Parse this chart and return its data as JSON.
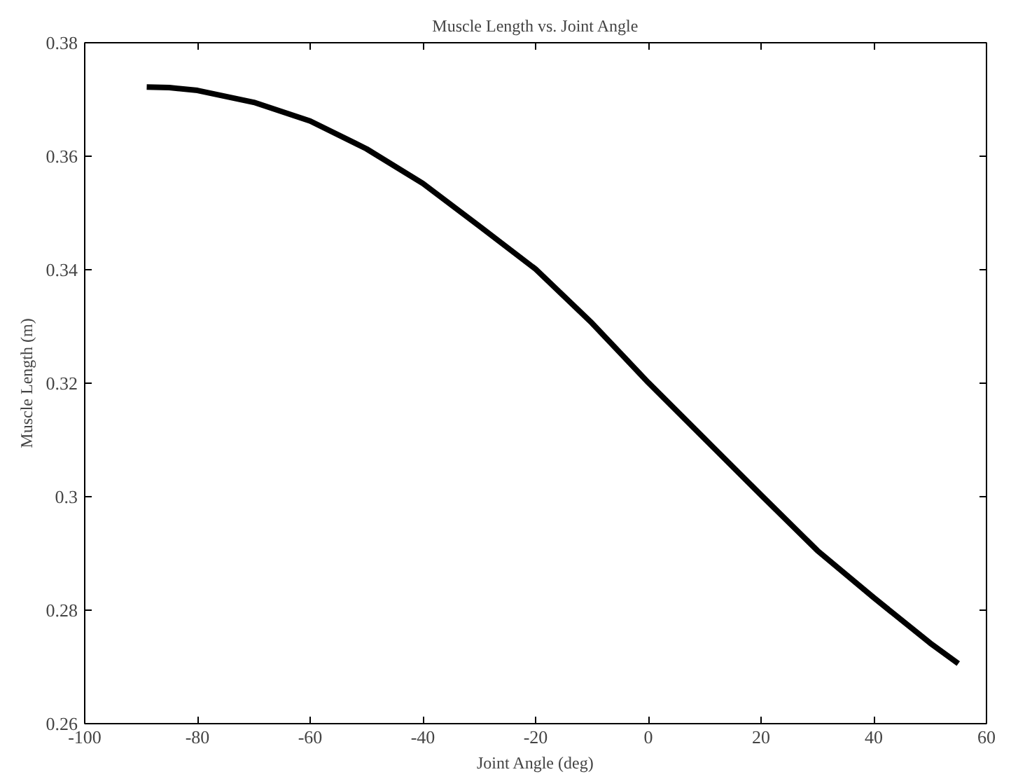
{
  "chart_data": {
    "type": "line",
    "title": "Muscle Length vs. Joint Angle",
    "xlabel": "Joint Angle (deg)",
    "ylabel": "Muscle Length (m)",
    "x": [
      -89,
      -85,
      -80,
      -70,
      -60,
      -50,
      -40,
      -30,
      -20,
      -10,
      0,
      10,
      20,
      30,
      40,
      50,
      55
    ],
    "series": [
      {
        "color": "#000000",
        "values": [
          0.3722,
          0.3721,
          0.3716,
          0.3695,
          0.3662,
          0.3613,
          0.3552,
          0.3477,
          0.3401,
          0.3306,
          0.3201,
          0.3102,
          0.3003,
          0.2905,
          0.2822,
          0.2742,
          0.2706
        ]
      }
    ],
    "xlim": [
      -100,
      60
    ],
    "ylim": [
      0.26,
      0.38
    ],
    "xticks": [
      -100,
      -80,
      -60,
      -40,
      -20,
      0,
      20,
      40,
      60
    ],
    "yticks": [
      0.26,
      0.28,
      0.3,
      0.32,
      0.34,
      0.36,
      0.38
    ],
    "grid": false,
    "marker": "none",
    "line_style": "solid"
  }
}
